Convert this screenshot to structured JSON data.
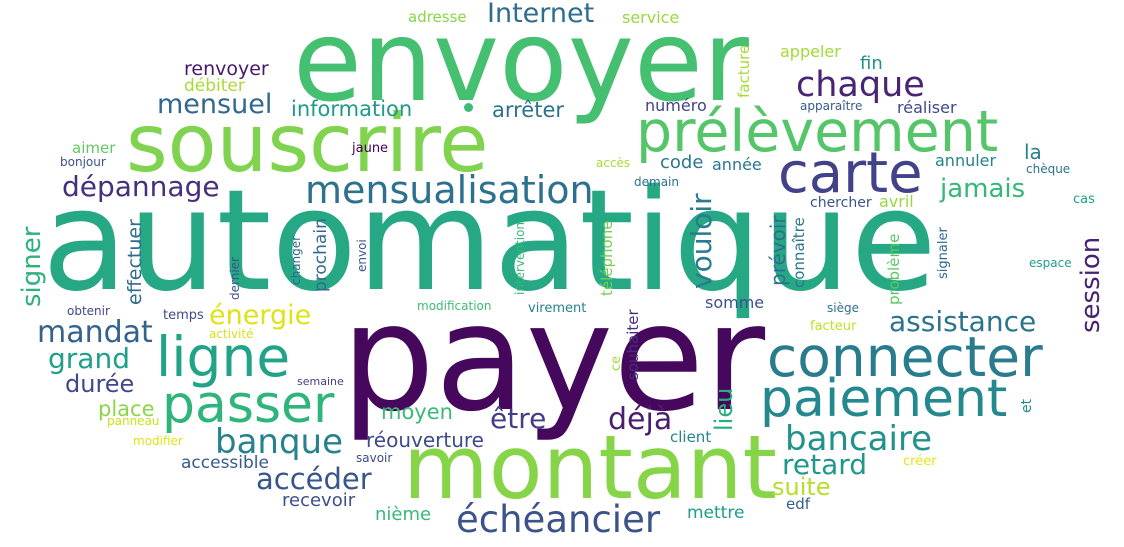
{
  "words": [
    {
      "text": "payer",
      "color": "#46085c"
    },
    {
      "text": "automatique",
      "color": "#26a885"
    },
    {
      "text": "envoyer",
      "color": "#45bf70"
    },
    {
      "text": "montant",
      "color": "#86d549"
    },
    {
      "text": "souscrire",
      "color": "#7fd34e"
    },
    {
      "text": "prélèvement",
      "color": "#54c568"
    },
    {
      "text": "carte",
      "color": "#414287"
    },
    {
      "text": "connecter",
      "color": "#297b8e"
    },
    {
      "text": "ligne",
      "color": "#20a386"
    },
    {
      "text": "paiement",
      "color": "#23898e"
    },
    {
      "text": "passer",
      "color": "#2fb47c"
    },
    {
      "text": "mensualisation",
      "color": "#2d718e"
    },
    {
      "text": "échéancier",
      "color": "#3b528b"
    },
    {
      "text": "chaque",
      "color": "#482475"
    },
    {
      "text": "bancaire",
      "color": "#21918c"
    },
    {
      "text": "banque",
      "color": "#26828e"
    },
    {
      "text": "retard",
      "color": "#1f988b"
    },
    {
      "text": "assistance",
      "color": "#2c738e"
    },
    {
      "text": "dépannage",
      "color": "#472f7d"
    },
    {
      "text": "Internet",
      "color": "#2e6e8e"
    },
    {
      "text": "mensuel",
      "color": "#31688e"
    },
    {
      "text": "mandat",
      "color": "#33638d"
    },
    {
      "text": "grand",
      "color": "#1fa088"
    },
    {
      "text": "accéder",
      "color": "#39568c"
    },
    {
      "text": "déjà",
      "color": "#481f70"
    },
    {
      "text": "être",
      "color": "#433e85"
    },
    {
      "text": "signer",
      "color": "#287c8e"
    },
    {
      "text": "session",
      "color": "#2db27d"
    },
    {
      "text": "vouloir",
      "color": "#482173"
    },
    {
      "text": "énergie",
      "color": "#dde318"
    },
    {
      "text": "jamais",
      "color": "#35b779"
    },
    {
      "text": "suite",
      "color": "#b5de2b"
    },
    {
      "text": "durée",
      "color": "#3e4989"
    },
    {
      "text": "moyen",
      "color": "#3aba76"
    },
    {
      "text": "lieu",
      "color": "#29af7f"
    },
    {
      "text": "place",
      "color": "#8bd646"
    },
    {
      "text": "information",
      "color": "#1f9a8a"
    },
    {
      "text": "arrêter",
      "color": "#2c728e"
    },
    {
      "text": "renvoyer",
      "color": "#481769"
    },
    {
      "text": "fin",
      "color": "#20928c"
    },
    {
      "text": "la",
      "color": "#277f8e"
    },
    {
      "text": "réouverture",
      "color": "#3e4a89"
    },
    {
      "text": "nième",
      "color": "#37b878"
    },
    {
      "text": "mettre",
      "color": "#1e9c89"
    },
    {
      "text": "recevoir",
      "color": "#3c4f8a"
    },
    {
      "text": "accessible",
      "color": "#38598c"
    },
    {
      "text": "effectuer",
      "color": "#2f6c8e"
    },
    {
      "text": "prochain",
      "color": "#306a8e"
    },
    {
      "text": "prévoir",
      "color": "#2e6f8e"
    },
    {
      "text": "débiter",
      "color": "#a8db34"
    },
    {
      "text": "appeler",
      "color": "#a2da37"
    },
    {
      "text": "code",
      "color": "#2a778e"
    },
    {
      "text": "année",
      "color": "#2a768e"
    },
    {
      "text": "annuler",
      "color": "#26818e"
    },
    {
      "text": "avril",
      "color": "#98d83e"
    },
    {
      "text": "somme",
      "color": "#3b528b"
    },
    {
      "text": "réaliser",
      "color": "#3e4989"
    },
    {
      "text": "numéro",
      "color": "#414487"
    },
    {
      "text": "client",
      "color": "#25858e"
    },
    {
      "text": "souhaiter",
      "color": "#472c7a"
    },
    {
      "text": "téléphone",
      "color": "#73d056"
    },
    {
      "text": "adresse",
      "color": "#89d548"
    },
    {
      "text": "service",
      "color": "#98d83e"
    },
    {
      "text": "facture",
      "color": "#a8db34"
    },
    {
      "text": "aimer",
      "color": "#60ca60"
    },
    {
      "text": "connaître",
      "color": "#2a788e"
    },
    {
      "text": "chercher",
      "color": "#3b528b"
    },
    {
      "text": "problème",
      "color": "#5cc863"
    },
    {
      "text": "signaler",
      "color": "#31688e"
    },
    {
      "text": "edf",
      "color": "#355f8d"
    },
    {
      "text": "et",
      "color": "#228c8d"
    },
    {
      "text": "ce",
      "color": "#9dd93b"
    },
    {
      "text": "jaune",
      "color": "#440154"
    },
    {
      "text": "bonjour",
      "color": "#3b528b"
    },
    {
      "text": "apparaître",
      "color": "#38598c"
    },
    {
      "text": "chèque",
      "color": "#2d718e"
    },
    {
      "text": "cas",
      "color": "#1fa088"
    },
    {
      "text": "espace",
      "color": "#1f9e89"
    },
    {
      "text": "siège",
      "color": "#2c728e"
    },
    {
      "text": "facteur",
      "color": "#c2df23"
    },
    {
      "text": "créer",
      "color": "#e5e419"
    },
    {
      "text": "modifier",
      "color": "#dde318"
    },
    {
      "text": "panneau",
      "color": "#cde11d"
    },
    {
      "text": "temps",
      "color": "#3e4a89"
    },
    {
      "text": "obtenir",
      "color": "#3f4889"
    },
    {
      "text": "activité",
      "color": "#d2e21b"
    },
    {
      "text": "semaine",
      "color": "#433e85"
    },
    {
      "text": "savoir",
      "color": "#3e4a89"
    },
    {
      "text": "modification",
      "color": "#3fbc73"
    },
    {
      "text": "virement",
      "color": "#26828e"
    },
    {
      "text": "accès",
      "color": "#a8db34"
    },
    {
      "text": "demain",
      "color": "#2e6e8e"
    },
    {
      "text": "intervention",
      "color": "#35b779"
    },
    {
      "text": "envoi",
      "color": "#3b528b"
    },
    {
      "text": "changer",
      "color": "#31688e"
    },
    {
      "text": "dernier",
      "color": "#3b528b"
    }
  ]
}
